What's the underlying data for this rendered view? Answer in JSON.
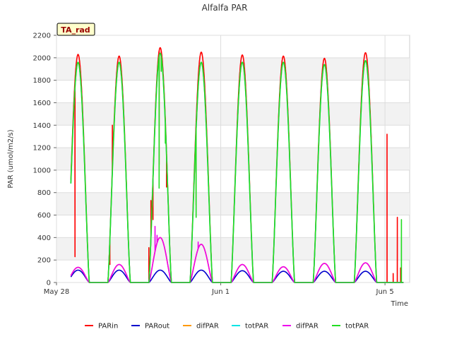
{
  "chart_data": {
    "type": "line",
    "title": "Alfalfa PAR",
    "xlabel": "Time",
    "ylabel": "PAR (umol/m2/s)",
    "badge": "TA_rad",
    "ylim": [
      0,
      2200
    ],
    "xlim": [
      0,
      8.6
    ],
    "y_ticks": [
      0,
      200,
      400,
      600,
      800,
      1000,
      1200,
      1400,
      1600,
      1800,
      2000,
      2200
    ],
    "x_ticks": [
      {
        "value": 0,
        "label": "May 28"
      },
      {
        "value": 4,
        "label": "Jun 1"
      },
      {
        "value": 8,
        "label": "Jun 5"
      }
    ],
    "grid": true,
    "legend_position": "bottom",
    "day_range": [
      0.35,
      8.45
    ],
    "sunrise_offset": 0.25,
    "sunset_offset": 0.8,
    "series": [
      {
        "name": "PARin",
        "color": "#ff0000",
        "daily_peaks": [
          2030,
          2015,
          2090,
          2050,
          2025,
          2015,
          1995,
          2045
        ],
        "spikes": [
          [
            0.45,
            230
          ],
          [
            1.3,
            160
          ],
          [
            1.36,
            1400
          ],
          [
            2.25,
            310
          ],
          [
            2.3,
            730
          ],
          [
            2.35,
            560
          ],
          [
            2.5,
            1050
          ],
          [
            2.55,
            1950
          ],
          [
            2.68,
            850
          ],
          [
            3.4,
            690
          ],
          [
            8.05,
            1320
          ],
          [
            8.2,
            80
          ],
          [
            8.3,
            580
          ],
          [
            8.38,
            130
          ],
          [
            8.45,
            570
          ]
        ]
      },
      {
        "name": "PARout",
        "color": "#0000cc",
        "daily_peaks": [
          110,
          110,
          110,
          110,
          105,
          100,
          100,
          100
        ],
        "spikes": []
      },
      {
        "name": "difPAR",
        "color": "#ff9900",
        "daily_peaks": [
          135,
          160,
          400,
          340,
          160,
          140,
          170,
          175
        ],
        "spikes": []
      },
      {
        "name": "totPAR",
        "color": "#00e5e5",
        "daily_peaks": [
          1960,
          1960,
          2040,
          1960,
          1960,
          1960,
          1940,
          1975
        ],
        "spikes": []
      },
      {
        "name": "difPAR",
        "color": "#ee00ee",
        "daily_peaks": [
          135,
          160,
          400,
          340,
          160,
          140,
          170,
          175
        ],
        "spikes": [
          [
            2.4,
            500
          ],
          [
            2.45,
            420
          ],
          [
            3.45,
            360
          ]
        ]
      },
      {
        "name": "totPAR",
        "color": "#22dd22",
        "daily_peaks": [
          1960,
          1960,
          2040,
          1960,
          1960,
          1960,
          1940,
          1975
        ],
        "spikes": [
          [
            2.5,
            840
          ],
          [
            2.55,
            1880
          ],
          [
            2.65,
            1240
          ],
          [
            3.4,
            580
          ],
          [
            8.4,
            560
          ]
        ]
      }
    ]
  }
}
